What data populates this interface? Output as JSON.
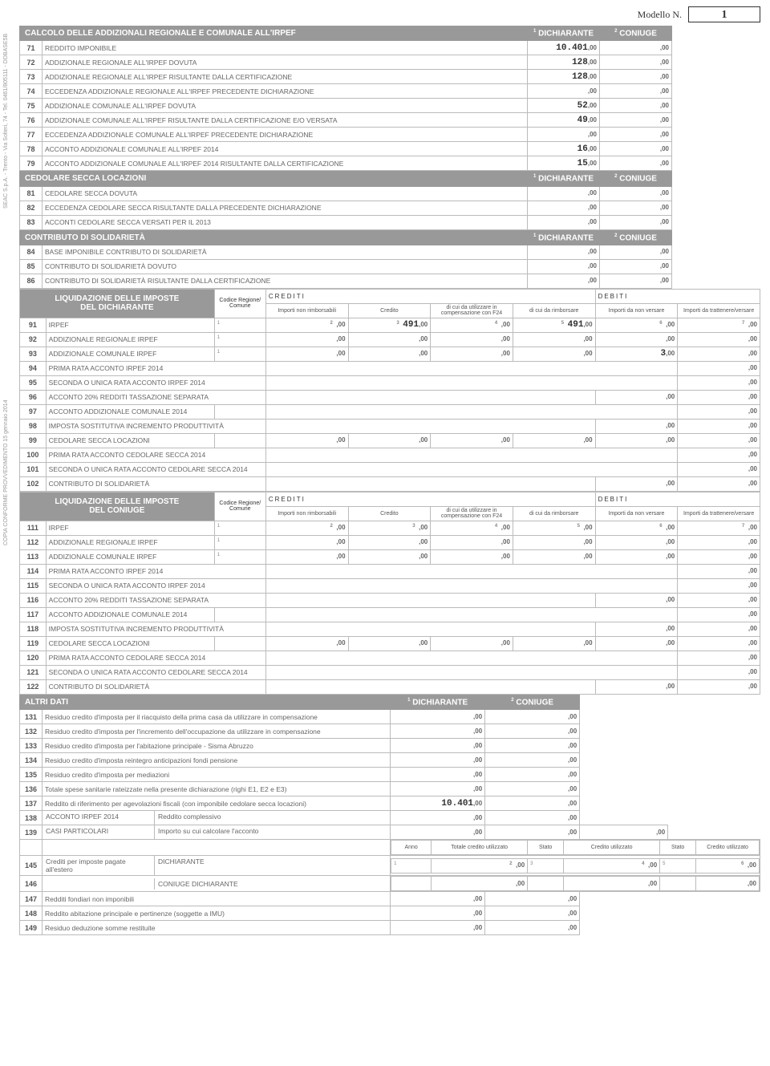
{
  "header": {
    "model_label": "Modello N.",
    "model_num": "1"
  },
  "side1": "SEAC S.p.A. - Trento - Via Solteri, 74 - Tel. 0461/805111 - DDBASE5B",
  "side2": "COPIA CONFORME PROVVEDIMENTO 15 gennaio 2014",
  "sect1": {
    "title": "CALCOLO DELLE ADDIZIONALI REGIONALE E COMUNALE ALL'IRPEF",
    "c1": "DICHIARANTE",
    "c2": "CONIUGE",
    "rows": [
      {
        "n": "71",
        "d": "REDDITO IMPONIBILE",
        "v1": "10.401",
        "v2": ""
      },
      {
        "n": "72",
        "d": "ADDIZIONALE REGIONALE ALL'IRPEF DOVUTA",
        "v1": "128",
        "v2": ""
      },
      {
        "n": "73",
        "d": "ADDIZIONALE REGIONALE ALL'IRPEF RISULTANTE DALLA CERTIFICAZIONE",
        "v1": "128",
        "v2": ""
      },
      {
        "n": "74",
        "d": "ECCEDENZA ADDIZIONALE REGIONALE ALL'IRPEF PRECEDENTE DICHIARAZIONE",
        "v1": "",
        "v2": ""
      },
      {
        "n": "75",
        "d": "ADDIZIONALE COMUNALE ALL'IRPEF DOVUTA",
        "v1": "52",
        "v2": ""
      },
      {
        "n": "76",
        "d": "ADDIZIONALE COMUNALE ALL'IRPEF RISULTANTE DALLA CERTIFICAZIONE E/O VERSATA",
        "v1": "49",
        "v2": ""
      },
      {
        "n": "77",
        "d": "ECCEDENZA ADDIZIONALE COMUNALE ALL'IRPEF PRECEDENTE DICHIARAZIONE",
        "v1": "",
        "v2": ""
      },
      {
        "n": "78",
        "d": "ACCONTO ADDIZIONALE COMUNALE ALL'IRPEF 2014",
        "v1": "16",
        "v2": ""
      },
      {
        "n": "79",
        "d": "ACCONTO ADDIZIONALE COMUNALE ALL'IRPEF 2014 RISULTANTE DALLA CERTIFICAZIONE",
        "v1": "15",
        "v2": ""
      }
    ]
  },
  "sect2": {
    "title": "CEDOLARE SECCA LOCAZIONI",
    "c1": "DICHIARANTE",
    "c2": "CONIUGE",
    "rows": [
      {
        "n": "81",
        "d": "CEDOLARE SECCA DOVUTA",
        "v1": "",
        "v2": ""
      },
      {
        "n": "82",
        "d": "ECCEDENZA CEDOLARE SECCA RISULTANTE DALLA PRECEDENTE DICHIARAZIONE",
        "v1": "",
        "v2": ""
      },
      {
        "n": "83",
        "d": "ACCONTI CEDOLARE SECCA VERSATI PER IL 2013",
        "v1": "",
        "v2": ""
      }
    ]
  },
  "sect3": {
    "title": "CONTRIBUTO DI SOLIDARIETÀ",
    "c1": "DICHIARANTE",
    "c2": "CONIUGE",
    "rows": [
      {
        "n": "84",
        "d": "BASE IMPONIBILE CONTRIBUTO DI SOLIDARIETÀ",
        "v1": "",
        "v2": ""
      },
      {
        "n": "85",
        "d": "CONTRIBUTO DI SOLIDARIETÀ DOVUTO",
        "v1": "",
        "v2": ""
      },
      {
        "n": "86",
        "d": "CONTRIBUTO DI SOLIDARIETÀ RISULTANTE DALLA CERTIFICAZIONE",
        "v1": "",
        "v2": ""
      }
    ]
  },
  "liq1": {
    "title1": "LIQUIDAZIONE DELLE IMPOSTE",
    "title2": "DEL DICHIARANTE",
    "cod": "Codice Regione/ Comune",
    "cred": "CREDITI",
    "deb": "DEBITI",
    "h1": "Importi non rimborsabili",
    "h2": "Credito",
    "h3": "di cui da utilizzare in compensazione con F24",
    "h4": "di cui da rimborsare",
    "h5": "Importi da non versare",
    "h6": "Importi da trattenere/versare",
    "rows": [
      {
        "n": "91",
        "d": "IRPEF",
        "c": "",
        "v": [
          "",
          "491",
          "",
          "491",
          "",
          ""
        ]
      },
      {
        "n": "92",
        "d": "ADDIZIONALE REGIONALE IRPEF",
        "c": "",
        "v": [
          "",
          "",
          "",
          "",
          "",
          ""
        ]
      },
      {
        "n": "93",
        "d": "ADDIZIONALE COMUNALE IRPEF",
        "c": "",
        "v": [
          "",
          "",
          "",
          "",
          "3",
          ""
        ]
      },
      {
        "n": "94",
        "d": "PRIMA RATA ACCONTO IRPEF 2014",
        "single": ""
      },
      {
        "n": "95",
        "d": "SECONDA O UNICA RATA ACCONTO IRPEF 2014",
        "single": ""
      },
      {
        "n": "96",
        "d": "ACCONTO 20% REDDITI TASSAZIONE SEPARATA",
        "two": [
          "",
          ""
        ]
      },
      {
        "n": "97",
        "d": "ACCONTO ADDIZIONALE COMUNALE 2014",
        "c": "",
        "single": ""
      },
      {
        "n": "98",
        "d": "IMPOSTA SOSTITUTIVA INCREMENTO PRODUTTIVITÀ",
        "two": [
          "",
          ""
        ]
      },
      {
        "n": "99",
        "d": "CEDOLARE SECCA LOCAZIONI",
        "v": [
          "",
          "",
          "",
          "",
          "",
          ""
        ]
      },
      {
        "n": "100",
        "d": "PRIMA RATA ACCONTO CEDOLARE SECCA 2014",
        "single": ""
      },
      {
        "n": "101",
        "d": "SECONDA O UNICA  RATA ACCONTO CEDOLARE SECCA 2014",
        "single": ""
      },
      {
        "n": "102",
        "d": "CONTRIBUTO DI SOLIDARIETÀ",
        "two": [
          "",
          ""
        ]
      }
    ]
  },
  "liq2": {
    "title1": "LIQUIDAZIONE DELLE IMPOSTE",
    "title2": "DEL CONIUGE",
    "rows": [
      {
        "n": "111",
        "d": "IRPEF",
        "c": "",
        "v": [
          "",
          "",
          "",
          "",
          "",
          ""
        ]
      },
      {
        "n": "112",
        "d": "ADDIZIONALE REGIONALE IRPEF",
        "c": "",
        "v": [
          "",
          "",
          "",
          "",
          "",
          ""
        ]
      },
      {
        "n": "113",
        "d": "ADDIZIONALE COMUNALE IRPEF",
        "c": "",
        "v": [
          "",
          "",
          "",
          "",
          "",
          ""
        ]
      },
      {
        "n": "114",
        "d": "PRIMA RATA ACCONTO IRPEF 2014",
        "single": ""
      },
      {
        "n": "115",
        "d": "SECONDA O UNICA RATA ACCONTO IRPEF 2014",
        "single": ""
      },
      {
        "n": "116",
        "d": "ACCONTO 20% REDDITI TASSAZIONE SEPARATA",
        "two": [
          "",
          ""
        ]
      },
      {
        "n": "117",
        "d": "ACCONTO ADDIZIONALE COMUNALE 2014",
        "c": "",
        "single": ""
      },
      {
        "n": "118",
        "d": "IMPOSTA SOSTITUTIVA INCREMENTO PRODUTTIVITÀ",
        "two": [
          "",
          ""
        ]
      },
      {
        "n": "119",
        "d": "CEDOLARE SECCA LOCAZIONI",
        "v": [
          "",
          "",
          "",
          "",
          "",
          ""
        ]
      },
      {
        "n": "120",
        "d": "PRIMA RATA ACCONTO CEDOLARE SECCA 2014",
        "single": ""
      },
      {
        "n": "121",
        "d": "SECONDA O UNICA RATA ACCONTO CEDOLARE SECCA 2014",
        "single": ""
      },
      {
        "n": "122",
        "d": "CONTRIBUTO DI SOLIDARIETÀ",
        "two": [
          "",
          ""
        ]
      }
    ]
  },
  "sect4": {
    "title": "ALTRI DATI",
    "c1": "DICHIARANTE",
    "c2": "CONIUGE",
    "rows": [
      {
        "n": "131",
        "d": "Residuo credito d'imposta per il riacquisto della prima casa da utilizzare in compensazione",
        "v1": "",
        "v2": ""
      },
      {
        "n": "132",
        "d": "Residuo credito d'imposta per l'incremento dell'occupazione da utilizzare in compensazione",
        "v1": "",
        "v2": ""
      },
      {
        "n": "133",
        "d": "Residuo credito d'imposta per l'abitazione principale - Sisma Abruzzo",
        "v1": "",
        "v2": ""
      },
      {
        "n": "134",
        "d": "Residuo credito d'imposta reintegro anticipazioni fondi pensione",
        "v1": "",
        "v2": ""
      },
      {
        "n": "135",
        "d": "Residuo credito d'imposta per mediazioni",
        "v1": "",
        "v2": ""
      },
      {
        "n": "136",
        "d": "Totale spese sanitarie rateizzate nella presente dichiarazione (righi E1, E2 e E3)",
        "v1": "",
        "v2": ""
      },
      {
        "n": "137",
        "d": "Reddito di riferimento per agevolazioni fiscali (con imponibile cedolare secca locazioni)",
        "v1": "10.401",
        "v2": ""
      }
    ],
    "r138": {
      "n": "138",
      "g": "ACCONTO IRPEF 2014 CASI PARTICOLARI",
      "d": "Reddito complessivo",
      "v1": "",
      "v2": ""
    },
    "r139": {
      "n": "139",
      "d": "Importo su cui calcolare l'acconto",
      "v1": "",
      "v2": "",
      "v3": ""
    },
    "cred_hdr": {
      "anno": "Anno",
      "tot": "Totale credito utilizzato",
      "st": "Stato",
      "cu": "Credito utilizzato"
    },
    "r145": {
      "n": "145",
      "g": "Crediti per imposte pagate all'estero",
      "d": "DICHIARANTE"
    },
    "r146": {
      "n": "146",
      "d": "CONIUGE DICHIARANTE"
    },
    "rows2": [
      {
        "n": "147",
        "d": "Redditi fondiari non imponibili",
        "v1": "",
        "v2": ""
      },
      {
        "n": "148",
        "d": "Reddito abitazione principale e pertinenze (soggette a IMU)",
        "v1": "",
        "v2": ""
      },
      {
        "n": "149",
        "d": "Residuo deduzione somme restituite",
        "v1": "",
        "v2": ""
      }
    ]
  }
}
